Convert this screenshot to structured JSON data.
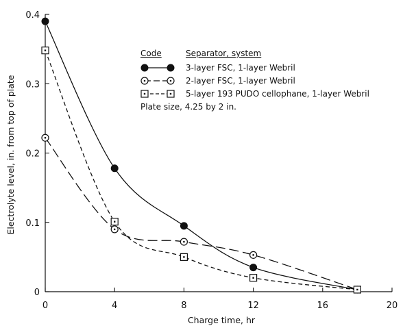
{
  "chart_data": {
    "type": "line",
    "xlabel": "Charge time, hr",
    "ylabel": "Electrolyte level, in. from top of plate",
    "xlim": [
      0,
      20
    ],
    "ylim": [
      0,
      0.4
    ],
    "x_ticks": [
      "0",
      "4",
      "8",
      "12",
      "16",
      "20"
    ],
    "y_ticks": [
      "0",
      "0.1",
      "0.2",
      "0.3",
      "0.4"
    ],
    "grid": false,
    "legend": {
      "placement": "top-right",
      "code_header": "Code",
      "separator_header": "Separator, system",
      "note": "Plate size, 4.25 by 2 in."
    },
    "series": [
      {
        "name": "3-layer FSC, 1-layer Webril",
        "marker": "filled-circle",
        "line": "solid",
        "x": [
          0,
          4,
          8,
          12,
          18
        ],
        "y": [
          0.39,
          0.178,
          0.095,
          0.035,
          0.003
        ]
      },
      {
        "name": "2-layer FSC, 1-layer Webril",
        "marker": "dotted-circle",
        "line": "long-dash",
        "x": [
          0,
          4,
          8,
          12,
          18
        ],
        "y": [
          0.222,
          0.09,
          0.072,
          0.053,
          0.003
        ]
      },
      {
        "name": "5-layer 193 PUDO cellophane, 1-layer Webril",
        "marker": "dotted-square",
        "line": "short-dash",
        "x": [
          0,
          4,
          8,
          12,
          18
        ],
        "y": [
          0.348,
          0.101,
          0.05,
          0.02,
          0.003
        ]
      }
    ]
  }
}
